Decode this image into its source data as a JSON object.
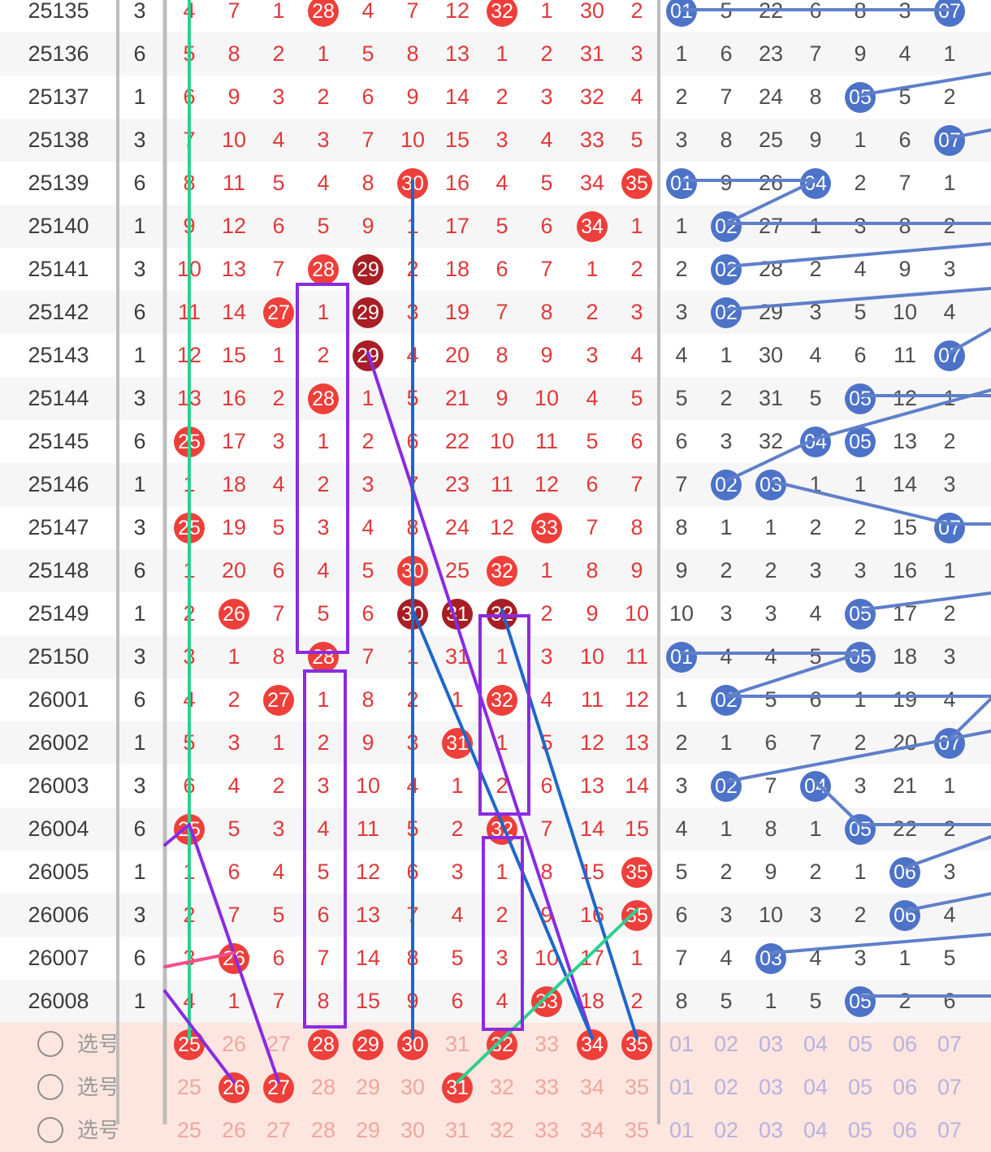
{
  "colors": {
    "red_number": "#e0393a",
    "red_ball": "#ee3f3a",
    "repeat_ball": "#a71e24",
    "blue_ball": "#4d73c8",
    "selection_row": "#fde6df"
  },
  "red_header": [
    "25",
    "26",
    "27",
    "28",
    "29",
    "30",
    "31",
    "32",
    "33",
    "34",
    "35"
  ],
  "blue_header": [
    "01",
    "02",
    "03",
    "04",
    "05",
    "06",
    "07"
  ],
  "pick_label": "选号",
  "rows": [
    {
      "period": "25135",
      "sum": "3",
      "red": [
        "4",
        "7",
        "1",
        "28",
        "4",
        "7",
        "12",
        "32",
        "1",
        "30",
        "2"
      ],
      "red_balls": [
        3,
        7
      ],
      "dark_balls": [],
      "blue": [
        "01",
        "5",
        "22",
        "6",
        "8",
        "3",
        "07"
      ],
      "blue_balls": [
        0,
        6
      ]
    },
    {
      "period": "25136",
      "sum": "6",
      "red": [
        "5",
        "8",
        "2",
        "1",
        "5",
        "8",
        "13",
        "1",
        "2",
        "31",
        "3"
      ],
      "red_balls": [],
      "dark_balls": [],
      "blue": [
        "1",
        "6",
        "23",
        "7",
        "9",
        "4",
        "1"
      ],
      "blue_balls": []
    },
    {
      "period": "25137",
      "sum": "1",
      "red": [
        "6",
        "9",
        "3",
        "2",
        "6",
        "9",
        "14",
        "2",
        "3",
        "32",
        "4"
      ],
      "red_balls": [],
      "dark_balls": [],
      "blue": [
        "2",
        "7",
        "24",
        "8",
        "05",
        "5",
        "2"
      ],
      "blue_balls": [
        4
      ]
    },
    {
      "period": "25138",
      "sum": "3",
      "red": [
        "7",
        "10",
        "4",
        "3",
        "7",
        "10",
        "15",
        "3",
        "4",
        "33",
        "5"
      ],
      "red_balls": [],
      "dark_balls": [],
      "blue": [
        "3",
        "8",
        "25",
        "9",
        "1",
        "6",
        "07"
      ],
      "blue_balls": [
        6
      ]
    },
    {
      "period": "25139",
      "sum": "6",
      "red": [
        "8",
        "11",
        "5",
        "4",
        "8",
        "30",
        "16",
        "4",
        "5",
        "34",
        "35"
      ],
      "red_balls": [
        5,
        10
      ],
      "dark_balls": [],
      "blue": [
        "01",
        "9",
        "26",
        "04",
        "2",
        "7",
        "1"
      ],
      "blue_balls": [
        0,
        3
      ]
    },
    {
      "period": "25140",
      "sum": "1",
      "red": [
        "9",
        "12",
        "6",
        "5",
        "9",
        "1",
        "17",
        "5",
        "6",
        "34",
        "1"
      ],
      "red_balls": [
        9
      ],
      "dark_balls": [],
      "blue": [
        "1",
        "02",
        "27",
        "1",
        "3",
        "8",
        "2"
      ],
      "blue_balls": [
        1
      ]
    },
    {
      "period": "25141",
      "sum": "3",
      "red": [
        "10",
        "13",
        "7",
        "28",
        "29",
        "2",
        "18",
        "6",
        "7",
        "1",
        "2"
      ],
      "red_balls": [
        3
      ],
      "dark_balls": [
        4
      ],
      "blue": [
        "2",
        "02",
        "28",
        "2",
        "4",
        "9",
        "3"
      ],
      "blue_balls": [
        1
      ]
    },
    {
      "period": "25142",
      "sum": "6",
      "red": [
        "11",
        "14",
        "27",
        "1",
        "29",
        "3",
        "19",
        "7",
        "8",
        "2",
        "3"
      ],
      "red_balls": [
        2
      ],
      "dark_balls": [
        4
      ],
      "blue": [
        "3",
        "02",
        "29",
        "3",
        "5",
        "10",
        "4"
      ],
      "blue_balls": [
        1
      ]
    },
    {
      "period": "25143",
      "sum": "1",
      "red": [
        "12",
        "15",
        "1",
        "2",
        "29",
        "4",
        "20",
        "8",
        "9",
        "3",
        "4"
      ],
      "red_balls": [],
      "dark_balls": [
        4
      ],
      "blue": [
        "4",
        "1",
        "30",
        "4",
        "6",
        "11",
        "07"
      ],
      "blue_balls": [
        6
      ]
    },
    {
      "period": "25144",
      "sum": "3",
      "red": [
        "13",
        "16",
        "2",
        "28",
        "1",
        "5",
        "21",
        "9",
        "10",
        "4",
        "5"
      ],
      "red_balls": [
        3
      ],
      "dark_balls": [],
      "blue": [
        "5",
        "2",
        "31",
        "5",
        "05",
        "12",
        "1"
      ],
      "blue_balls": [
        4
      ]
    },
    {
      "period": "25145",
      "sum": "6",
      "red": [
        "25",
        "17",
        "3",
        "1",
        "2",
        "6",
        "22",
        "10",
        "11",
        "5",
        "6"
      ],
      "red_balls": [
        0
      ],
      "dark_balls": [],
      "blue": [
        "6",
        "3",
        "32",
        "04",
        "05",
        "13",
        "2"
      ],
      "blue_balls": [
        3,
        4
      ]
    },
    {
      "period": "25146",
      "sum": "1",
      "red": [
        "1",
        "18",
        "4",
        "2",
        "3",
        "7",
        "23",
        "11",
        "12",
        "6",
        "7"
      ],
      "red_balls": [],
      "dark_balls": [],
      "blue": [
        "7",
        "02",
        "03",
        "1",
        "1",
        "14",
        "3"
      ],
      "blue_balls": [
        1,
        2
      ]
    },
    {
      "period": "25147",
      "sum": "3",
      "red": [
        "25",
        "19",
        "5",
        "3",
        "4",
        "8",
        "24",
        "12",
        "33",
        "7",
        "8"
      ],
      "red_balls": [
        0,
        8
      ],
      "dark_balls": [],
      "blue": [
        "8",
        "1",
        "1",
        "2",
        "2",
        "15",
        "07"
      ],
      "blue_balls": [
        6
      ]
    },
    {
      "period": "25148",
      "sum": "6",
      "red": [
        "1",
        "20",
        "6",
        "4",
        "5",
        "30",
        "25",
        "32",
        "1",
        "8",
        "9"
      ],
      "red_balls": [
        5,
        7
      ],
      "dark_balls": [],
      "blue": [
        "9",
        "2",
        "2",
        "3",
        "3",
        "16",
        "1"
      ],
      "blue_balls": []
    },
    {
      "period": "25149",
      "sum": "1",
      "red": [
        "2",
        "26",
        "7",
        "5",
        "6",
        "30",
        "31",
        "32",
        "2",
        "9",
        "10"
      ],
      "red_balls": [
        1
      ],
      "dark_balls": [
        5,
        6,
        7
      ],
      "blue": [
        "10",
        "3",
        "3",
        "4",
        "05",
        "17",
        "2"
      ],
      "blue_balls": [
        4
      ]
    },
    {
      "period": "25150",
      "sum": "3",
      "red": [
        "3",
        "1",
        "8",
        "28",
        "7",
        "1",
        "31",
        "1",
        "3",
        "10",
        "11"
      ],
      "red_balls": [
        3
      ],
      "dark_balls": [],
      "blue": [
        "01",
        "4",
        "4",
        "5",
        "05",
        "18",
        "3"
      ],
      "blue_balls": [
        0,
        4
      ]
    },
    {
      "period": "26001",
      "sum": "6",
      "red": [
        "4",
        "2",
        "27",
        "1",
        "8",
        "2",
        "1",
        "32",
        "4",
        "11",
        "12"
      ],
      "red_balls": [
        2,
        7
      ],
      "dark_balls": [],
      "blue": [
        "1",
        "02",
        "5",
        "6",
        "1",
        "19",
        "4"
      ],
      "blue_balls": [
        1
      ]
    },
    {
      "period": "26002",
      "sum": "1",
      "red": [
        "5",
        "3",
        "1",
        "2",
        "9",
        "3",
        "31",
        "1",
        "5",
        "12",
        "13"
      ],
      "red_balls": [
        6
      ],
      "dark_balls": [],
      "blue": [
        "2",
        "1",
        "6",
        "7",
        "2",
        "20",
        "07"
      ],
      "blue_balls": [
        6
      ]
    },
    {
      "period": "26003",
      "sum": "3",
      "red": [
        "6",
        "4",
        "2",
        "3",
        "10",
        "4",
        "1",
        "2",
        "6",
        "13",
        "14"
      ],
      "red_balls": [],
      "dark_balls": [],
      "blue": [
        "3",
        "02",
        "7",
        "04",
        "3",
        "21",
        "1"
      ],
      "blue_balls": [
        1,
        3
      ]
    },
    {
      "period": "26004",
      "sum": "6",
      "red": [
        "25",
        "5",
        "3",
        "4",
        "11",
        "5",
        "2",
        "32",
        "7",
        "14",
        "15"
      ],
      "red_balls": [
        0,
        7
      ],
      "dark_balls": [],
      "blue": [
        "4",
        "1",
        "8",
        "1",
        "05",
        "22",
        "2"
      ],
      "blue_balls": [
        4
      ]
    },
    {
      "period": "26005",
      "sum": "1",
      "red": [
        "1",
        "6",
        "4",
        "5",
        "12",
        "6",
        "3",
        "1",
        "8",
        "15",
        "35"
      ],
      "red_balls": [
        10
      ],
      "dark_balls": [],
      "blue": [
        "5",
        "2",
        "9",
        "2",
        "1",
        "06",
        "3"
      ],
      "blue_balls": [
        5
      ]
    },
    {
      "period": "26006",
      "sum": "3",
      "red": [
        "2",
        "7",
        "5",
        "6",
        "13",
        "7",
        "4",
        "2",
        "9",
        "16",
        "35"
      ],
      "red_balls": [
        10
      ],
      "dark_balls": [],
      "blue": [
        "6",
        "3",
        "10",
        "3",
        "2",
        "06",
        "4"
      ],
      "blue_balls": [
        5
      ]
    },
    {
      "period": "26007",
      "sum": "6",
      "red": [
        "3",
        "26",
        "6",
        "7",
        "14",
        "8",
        "5",
        "3",
        "10",
        "17",
        "1"
      ],
      "red_balls": [
        1
      ],
      "dark_balls": [],
      "blue": [
        "7",
        "4",
        "03",
        "4",
        "3",
        "1",
        "5"
      ],
      "blue_balls": [
        2
      ]
    },
    {
      "period": "26008",
      "sum": "1",
      "red": [
        "4",
        "1",
        "7",
        "8",
        "15",
        "9",
        "6",
        "4",
        "33",
        "18",
        "2"
      ],
      "red_balls": [
        8
      ],
      "dark_balls": [],
      "blue": [
        "8",
        "5",
        "1",
        "5",
        "05",
        "2",
        "6"
      ],
      "blue_balls": [
        4
      ]
    }
  ],
  "selections": [
    {
      "red_balls": [
        0,
        3,
        4,
        5,
        7,
        9,
        10
      ]
    },
    {
      "red_balls": [
        1,
        2,
        6
      ]
    },
    {
      "red_balls": []
    }
  ]
}
